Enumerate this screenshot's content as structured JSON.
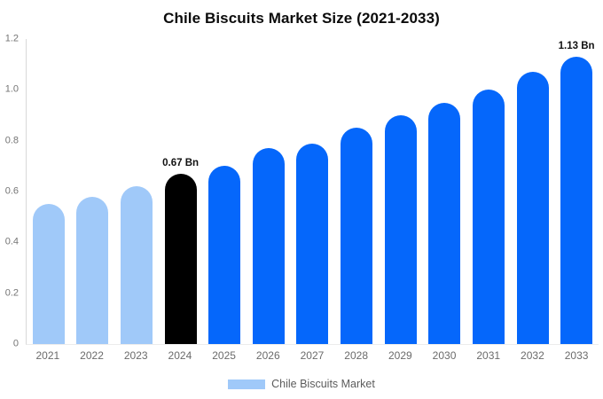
{
  "colors": {
    "primary": "#0567fb",
    "muted": "#a0c9f9",
    "highlight": "#000000",
    "axis_line": "#d9d9d9",
    "tick_text": "#757575"
  },
  "chart_data": {
    "type": "bar",
    "title": "Chile Biscuits Market Size (2021-2033)",
    "xlabel": "",
    "ylabel": "",
    "unit": "Bn",
    "categories": [
      "2021",
      "2022",
      "2023",
      "2024",
      "2025",
      "2026",
      "2027",
      "2028",
      "2029",
      "2030",
      "2031",
      "2032",
      "2033"
    ],
    "values": [
      0.55,
      0.58,
      0.62,
      0.67,
      0.7,
      0.77,
      0.79,
      0.85,
      0.9,
      0.95,
      1.0,
      1.07,
      1.13
    ],
    "bar_styles": [
      "muted",
      "muted",
      "muted",
      "highlight",
      "primary",
      "primary",
      "primary",
      "primary",
      "primary",
      "primary",
      "primary",
      "primary",
      "primary"
    ],
    "point_labels": [
      "",
      "",
      "",
      "0.67 Bn",
      "",
      "",
      "",
      "",
      "",
      "",
      "",
      "",
      "1.13 Bn"
    ],
    "ylim": [
      0,
      1.2
    ],
    "yticks": [
      0,
      0.2,
      0.4,
      0.6,
      0.8,
      1.0,
      1.2
    ],
    "ytick_labels": [
      "0",
      "0.2",
      "0.4",
      "0.6",
      "0.8",
      "1.0",
      "1.2"
    ],
    "grid": false,
    "legend": {
      "position": "bottom",
      "entries": [
        {
          "label": "Chile Biscuits Market",
          "color": "#a0c9f9"
        }
      ]
    }
  }
}
